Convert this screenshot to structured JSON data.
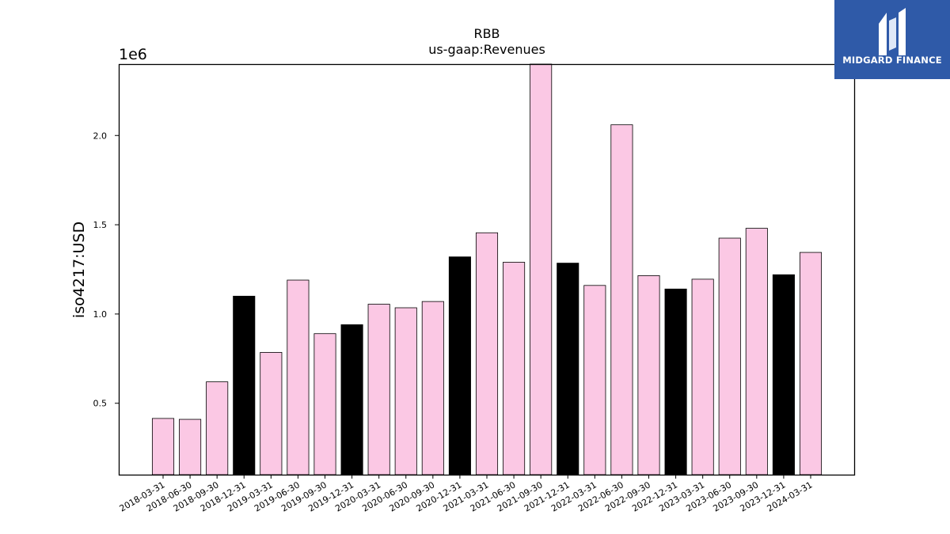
{
  "chart_data": {
    "type": "bar",
    "title": "RBB",
    "subtitle": "us-gaap:Revenues",
    "ylabel": "iso4217:USD",
    "y_offset_label": "1e6",
    "ylim": [
      0.1,
      2.4
    ],
    "yticks": [
      0.5,
      1.0,
      1.5,
      2.0
    ],
    "ytick_labels": [
      "0.5",
      "1.0",
      "1.5",
      "2.0"
    ],
    "grid": false,
    "colors": {
      "quarter": "#fbc8e4",
      "year_end": "#000000",
      "edge": "#000000"
    },
    "categories": [
      "2018-03-31",
      "2018-06-30",
      "2018-09-30",
      "2018-12-31",
      "2019-03-31",
      "2019-06-30",
      "2019-09-30",
      "2019-12-31",
      "2020-03-31",
      "2020-06-30",
      "2020-09-30",
      "2020-12-31",
      "2021-03-31",
      "2021-06-30",
      "2021-09-30",
      "2021-12-31",
      "2022-03-31",
      "2022-06-30",
      "2022-09-30",
      "2022-12-31",
      "2023-03-31",
      "2023-06-30",
      "2023-09-30",
      "2023-12-31",
      "2024-03-31"
    ],
    "values": [
      0.415,
      0.41,
      0.62,
      1.1,
      0.785,
      1.19,
      0.89,
      0.94,
      1.055,
      1.035,
      1.07,
      1.32,
      1.455,
      1.29,
      2.4,
      1.285,
      1.16,
      2.06,
      1.215,
      1.14,
      1.195,
      1.425,
      1.48,
      1.22,
      1.345
    ],
    "year_end": [
      false,
      false,
      false,
      true,
      false,
      false,
      false,
      true,
      false,
      false,
      false,
      true,
      false,
      false,
      false,
      true,
      false,
      false,
      false,
      true,
      false,
      false,
      false,
      true,
      false
    ]
  },
  "logo": {
    "name": "MIDGARD FINANCE",
    "icon": "midgard-logo-icon"
  }
}
